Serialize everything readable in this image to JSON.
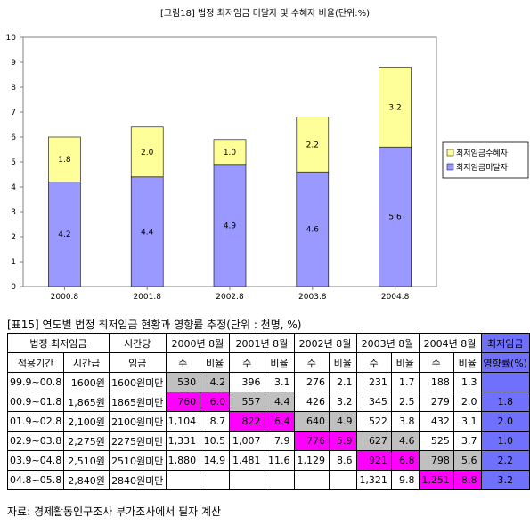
{
  "chart_data": {
    "type": "bar",
    "stacked": true,
    "title": "[그림18] 법정 최저임금 미달자 및 수혜자 비율(단위:%)",
    "categories": [
      "2000.8",
      "2001.8",
      "2002.8",
      "2003.8",
      "2004.8"
    ],
    "series": [
      {
        "name": "최저임금미달자",
        "values": [
          4.2,
          4.4,
          4.9,
          4.6,
          5.6
        ],
        "color": "#9999ff"
      },
      {
        "name": "최저임금수혜자",
        "values": [
          1.8,
          2.0,
          1.0,
          2.2,
          3.2
        ],
        "color": "#ffff99"
      }
    ],
    "ylim": [
      0,
      10
    ],
    "yticks": [
      "0",
      "1",
      "2",
      "3",
      "4",
      "5",
      "6",
      "7",
      "8",
      "9",
      "10"
    ],
    "grid": false,
    "legend": "right"
  },
  "table": {
    "title": "[표15] 연도별 법정 최저임금 현황과 영향률 추정(단위 : 천명, %)",
    "header1": {
      "min_wage": "법정 최저임금",
      "hourly": "시간당",
      "years": [
        "2000년 8월",
        "2001년 8월",
        "2002년 8월",
        "2003년 8월",
        "2004년 8월"
      ],
      "impact": "최저임금"
    },
    "header2": {
      "period": "적용기간",
      "rate": "시간급",
      "wage": "임금",
      "count": "수",
      "ratio": "비율",
      "impact": "영향률(%)"
    },
    "rows": [
      {
        "period": "99.9~00.8",
        "rate": "1600원",
        "wage": "1600원미만",
        "cells": [
          [
            "530",
            "4.2"
          ],
          [
            "396",
            "3.1"
          ],
          [
            "276",
            "2.1"
          ],
          [
            "231",
            "1.7"
          ],
          [
            "188",
            "1.3"
          ]
        ],
        "impact": ""
      },
      {
        "period": "00.9~01.8",
        "rate": "1,865원",
        "wage": "1865원미만",
        "cells": [
          [
            "760",
            "6.0"
          ],
          [
            "557",
            "4.4"
          ],
          [
            "426",
            "3.2"
          ],
          [
            "345",
            "2.5"
          ],
          [
            "279",
            "2.0"
          ]
        ],
        "impact": "1.8"
      },
      {
        "period": "01.9~02.8",
        "rate": "2,100원",
        "wage": "2100원미만",
        "cells": [
          [
            "1,104",
            "8.7"
          ],
          [
            "822",
            "6.4"
          ],
          [
            "640",
            "4.9"
          ],
          [
            "522",
            "3.8"
          ],
          [
            "432",
            "3.1"
          ]
        ],
        "impact": "2.0"
      },
      {
        "period": "02.9~03.8",
        "rate": "2,275원",
        "wage": "2275원미만",
        "cells": [
          [
            "1,331",
            "10.5"
          ],
          [
            "1,007",
            "7.9"
          ],
          [
            "776",
            "5.9"
          ],
          [
            "627",
            "4.6"
          ],
          [
            "525",
            "3.7"
          ]
        ],
        "impact": "1.0"
      },
      {
        "period": "03.9~04.8",
        "rate": "2,510원",
        "wage": "2510원미만",
        "cells": [
          [
            "1,880",
            "14.9"
          ],
          [
            "1,481",
            "11.6"
          ],
          [
            "1,129",
            "8.6"
          ],
          [
            "921",
            "6.8"
          ],
          [
            "798",
            "5.6"
          ]
        ],
        "impact": "2.2"
      },
      {
        "period": "04.8~05.8",
        "rate": "2,840원",
        "wage": "2840원미만",
        "cells": [
          [
            "",
            ""
          ],
          [
            "",
            ""
          ],
          [
            "",
            ""
          ],
          [
            "1,321",
            "9.8"
          ],
          [
            "1,251",
            "8.8"
          ]
        ],
        "impact": "3.2"
      }
    ],
    "highlight_colors": {
      "magenta": "#ff00ff",
      "gray": "#c0c0c0",
      "blue": "#7070ff"
    }
  },
  "source_note": "자료: 경제활동인구조사 부가조사에서 필자 계산"
}
